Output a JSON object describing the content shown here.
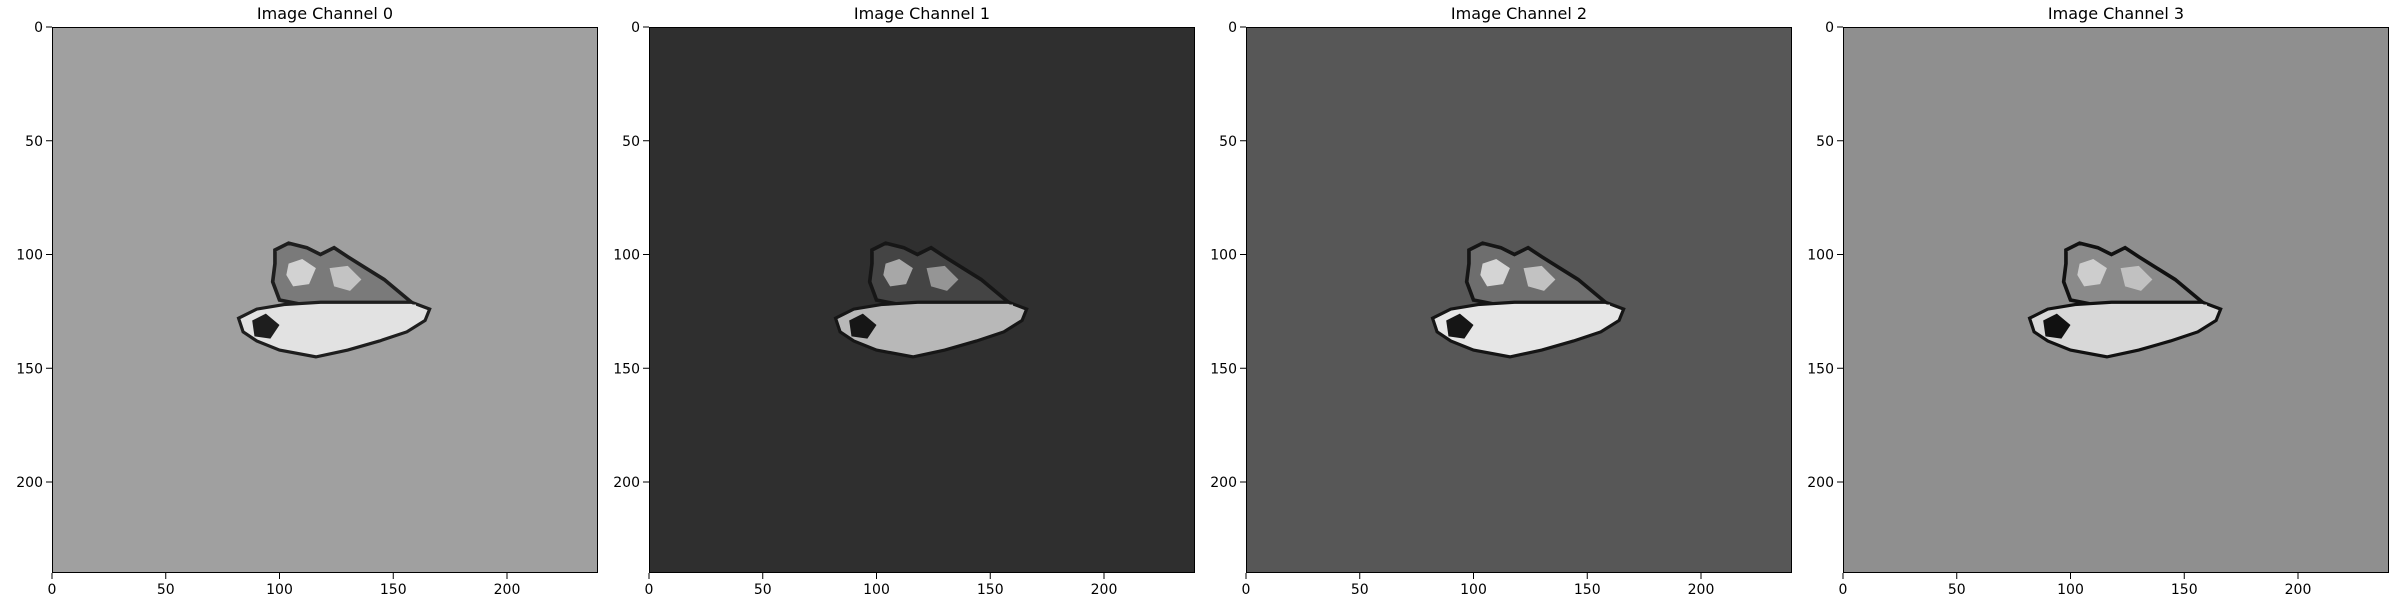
{
  "panels": [
    {
      "title": "Image Channel 0",
      "background": "#a0a0a0",
      "tissue": {
        "dark": "#1e1e1e",
        "mid": "#7a7a7a",
        "light": "#e2e2e2"
      }
    },
    {
      "title": "Image Channel 1",
      "background": "#2f2f2f",
      "tissue": {
        "dark": "#161616",
        "mid": "#444444",
        "light": "#b8b8b8"
      }
    },
    {
      "title": "Image Channel 2",
      "background": "#575757",
      "tissue": {
        "dark": "#151515",
        "mid": "#6e6e6e",
        "light": "#e6e6e6"
      }
    },
    {
      "title": "Image Channel 3",
      "background": "#8f8f8f",
      "tissue": {
        "dark": "#111111",
        "mid": "#8a8a8a",
        "light": "#d8d8d8"
      }
    }
  ],
  "axes": {
    "x_range": [
      0,
      240
    ],
    "y_range": [
      240,
      0
    ],
    "x_ticks": [
      0,
      50,
      100,
      150,
      200
    ],
    "y_ticks": [
      0,
      50,
      100,
      150,
      200
    ]
  },
  "colors": {
    "tick": "#000000",
    "frame": "#000000",
    "text": "#000000"
  }
}
